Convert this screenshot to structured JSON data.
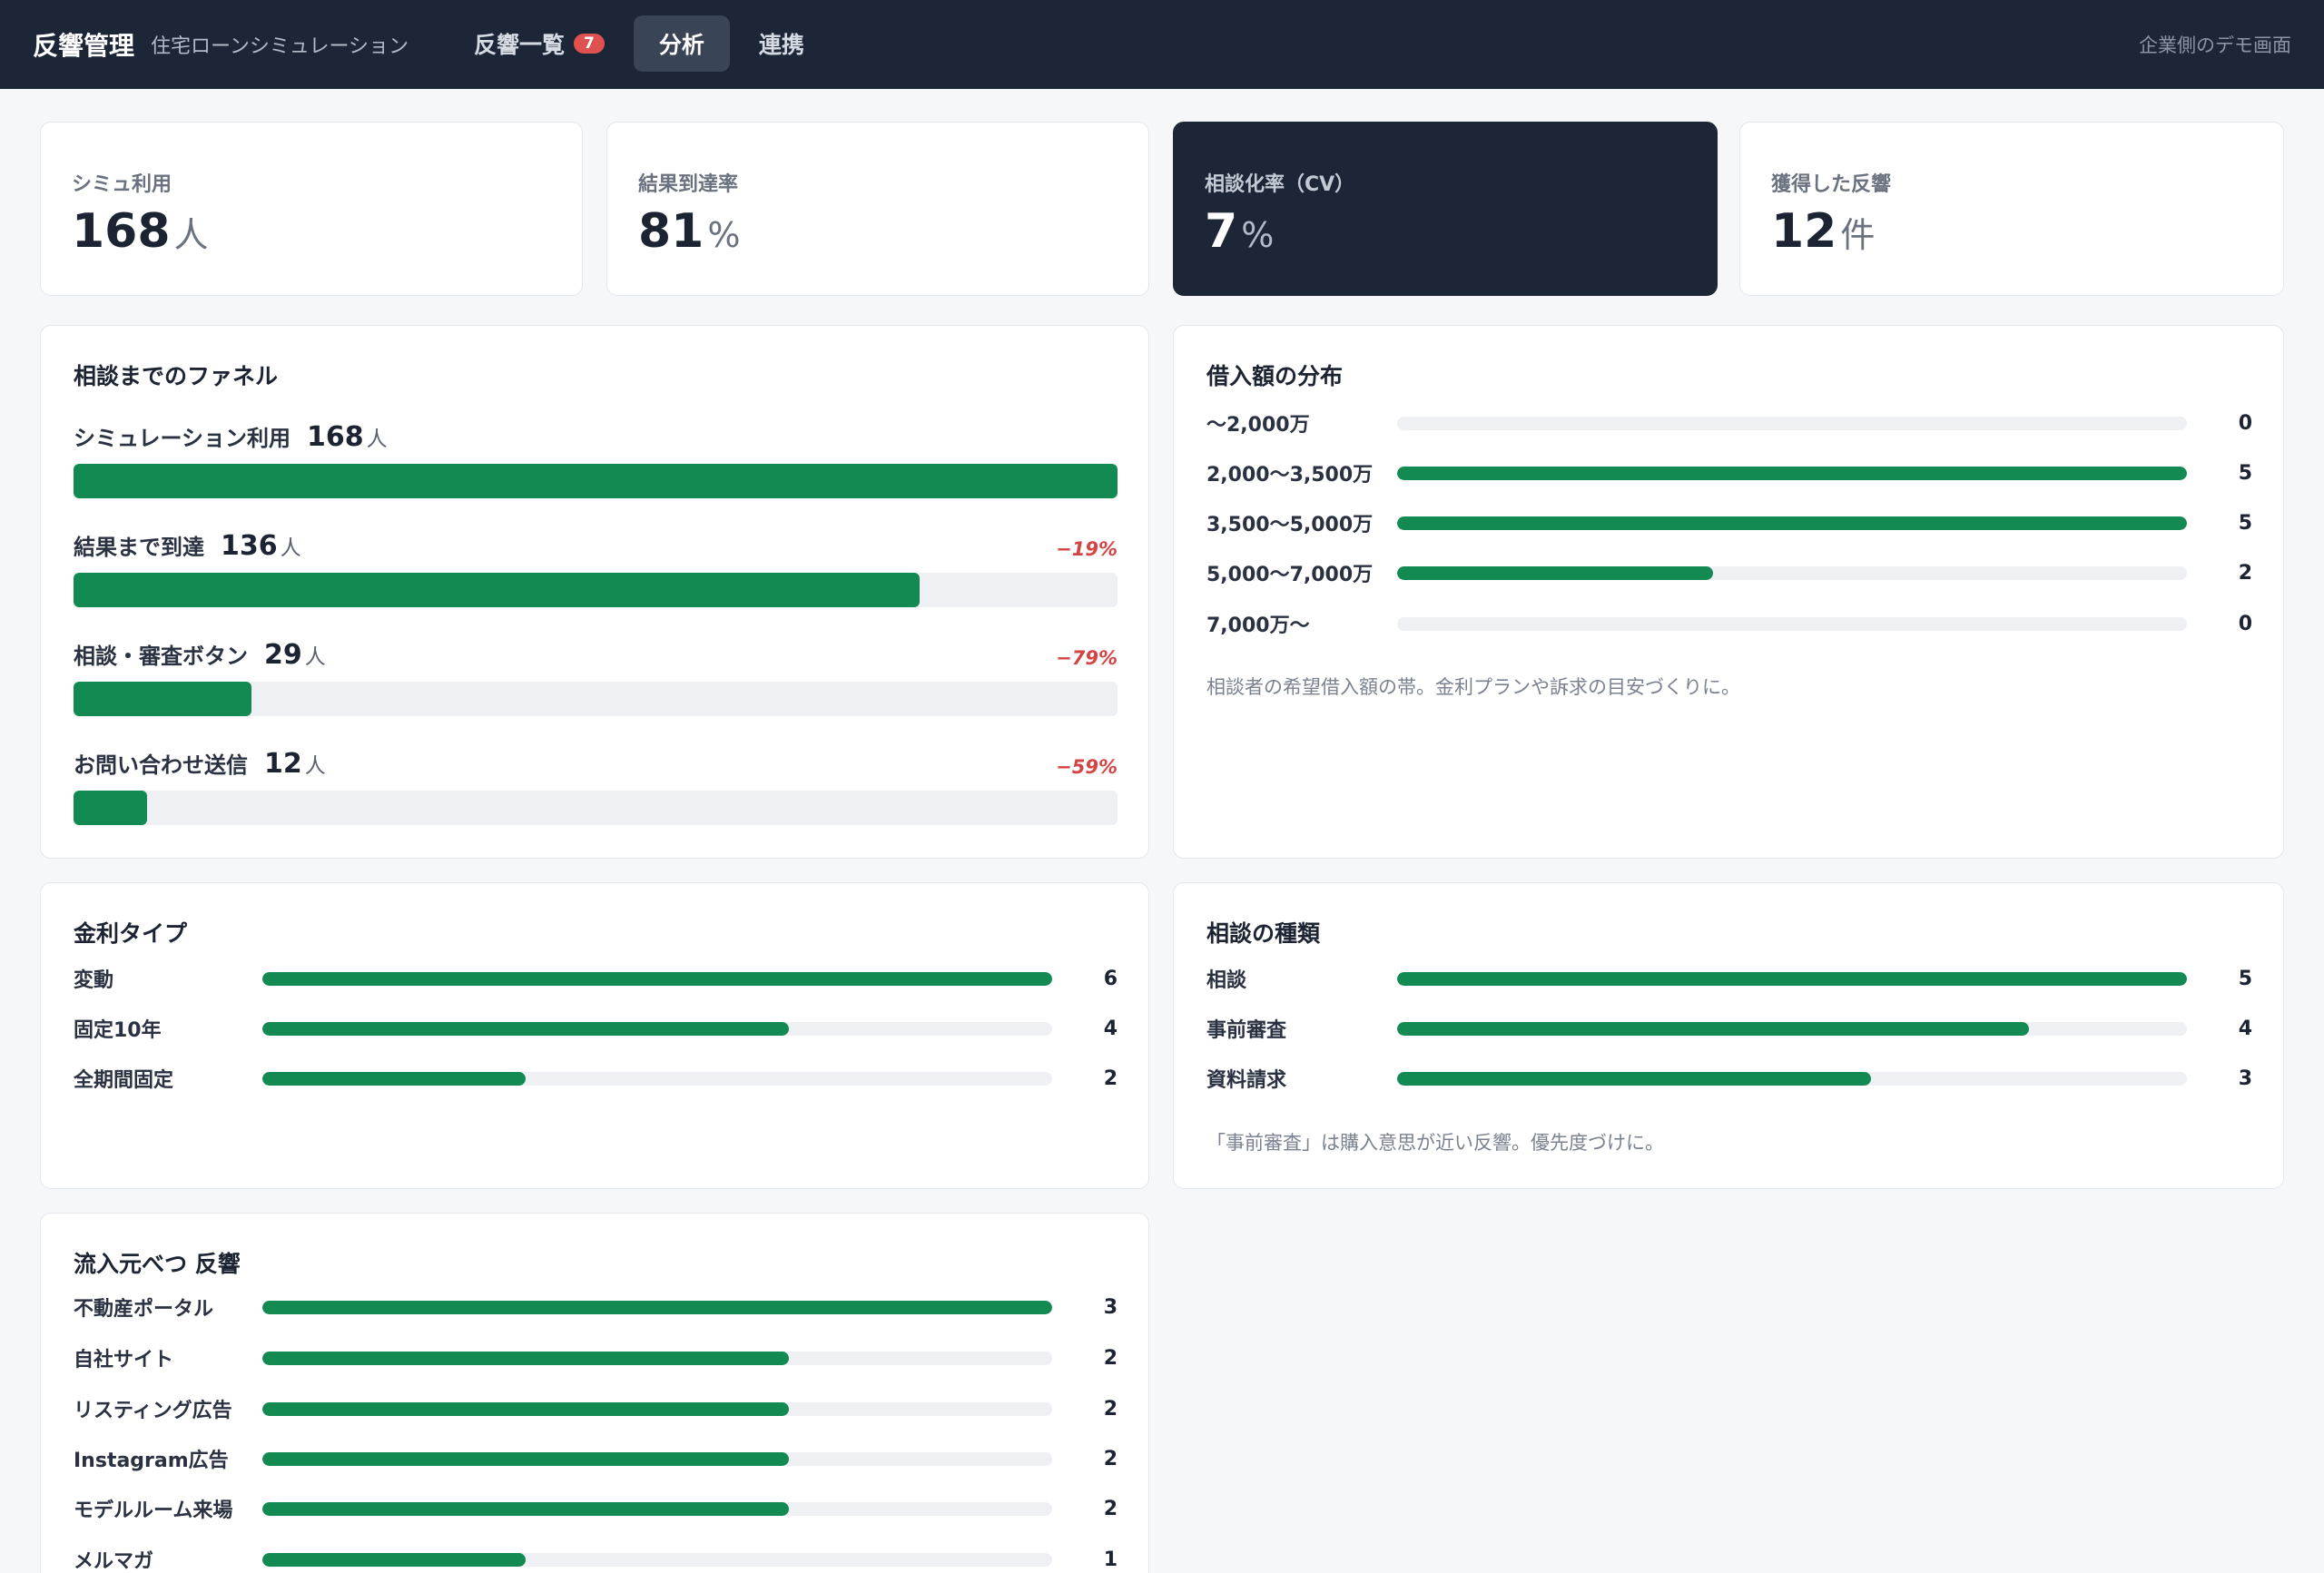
{
  "header": {
    "title": "反響管理",
    "subtitle": "住宅ローンシミュレーション",
    "tabs": [
      {
        "label": "反響一覧",
        "badge": "7"
      },
      {
        "label": "分析"
      },
      {
        "label": "連携"
      }
    ],
    "demo_note": "企業側のデモ画面"
  },
  "kpis": [
    {
      "label": "シミュ利用",
      "value": "168",
      "unit": "人"
    },
    {
      "label": "結果到達率",
      "value": "81",
      "unit": "%"
    },
    {
      "label": "相談化率（CV）",
      "value": "7",
      "unit": "%"
    },
    {
      "label": "獲得した反響",
      "value": "12",
      "unit": "件"
    }
  ],
  "funnel": {
    "title": "相談までのファネル",
    "steps": [
      {
        "label": "シミュレーション利用",
        "value": "168",
        "unit": "人",
        "drop": "",
        "fraction": 1.0
      },
      {
        "label": "結果まで到達",
        "value": "136",
        "unit": "人",
        "drop": "−19%",
        "fraction": 0.81
      },
      {
        "label": "相談・審査ボタン",
        "value": "29",
        "unit": "人",
        "drop": "−79%",
        "fraction": 0.17
      },
      {
        "label": "お問い合わせ送信",
        "value": "12",
        "unit": "人",
        "drop": "−59%",
        "fraction": 0.07
      }
    ]
  },
  "loan_distribution": {
    "title": "借入額の分布",
    "max": 5,
    "rows": [
      {
        "label": "〜2,000万",
        "count": 0
      },
      {
        "label": "2,000〜3,500万",
        "count": 5
      },
      {
        "label": "3,500〜5,000万",
        "count": 5
      },
      {
        "label": "5,000〜7,000万",
        "count": 2
      },
      {
        "label": "7,000万〜",
        "count": 0
      }
    ],
    "note": "相談者の希望借入額の帯。金利プランや訴求の目安づくりに。"
  },
  "rate_type": {
    "title": "金利タイプ",
    "max": 6,
    "rows": [
      {
        "label": "変動",
        "count": 6
      },
      {
        "label": "固定10年",
        "count": 4
      },
      {
        "label": "全期間固定",
        "count": 2
      }
    ]
  },
  "consult_type": {
    "title": "相談の種類",
    "max": 5,
    "rows": [
      {
        "label": "相談",
        "count": 5
      },
      {
        "label": "事前審査",
        "count": 4
      },
      {
        "label": "資料請求",
        "count": 3
      }
    ],
    "note": "「事前審査」は購入意思が近い反響。優先度づけに。"
  },
  "source": {
    "title": "流入元べつ 反響",
    "max": 3,
    "rows": [
      {
        "label": "不動産ポータル",
        "count": 3
      },
      {
        "label": "自社サイト",
        "count": 2
      },
      {
        "label": "リスティング広告",
        "count": 2
      },
      {
        "label": "Instagram広告",
        "count": 2
      },
      {
        "label": "モデルルーム来場",
        "count": 2
      },
      {
        "label": "メルマガ",
        "count": 1
      }
    ]
  },
  "colors": {
    "accent": "#138a52",
    "header": "#1c2637",
    "drop": "#d34545",
    "badge": "#e05252"
  }
}
